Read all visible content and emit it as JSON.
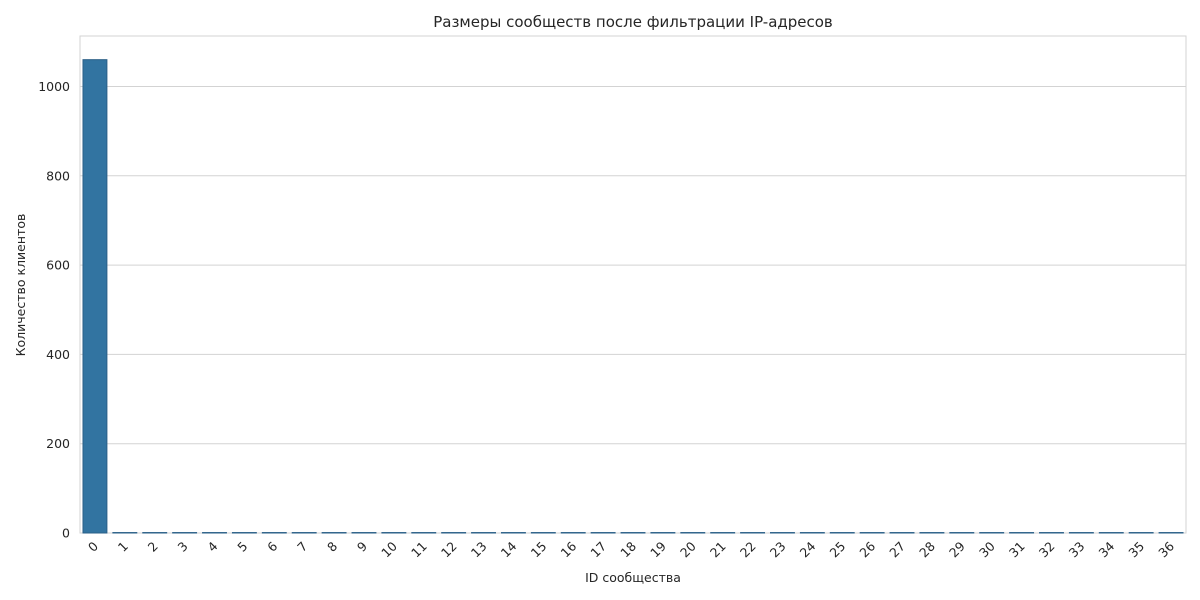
{
  "chart_data": {
    "type": "bar",
    "title": "Размеры сообществ после фильтрации IP-адресов",
    "xlabel": "ID сообщества",
    "ylabel": "Количество клиентов",
    "categories": [
      "0",
      "1",
      "2",
      "3",
      "4",
      "5",
      "6",
      "7",
      "8",
      "9",
      "10",
      "11",
      "12",
      "13",
      "14",
      "15",
      "16",
      "17",
      "18",
      "19",
      "20",
      "21",
      "22",
      "23",
      "24",
      "25",
      "26",
      "27",
      "28",
      "29",
      "30",
      "31",
      "32",
      "33",
      "34",
      "35",
      "36"
    ],
    "values": [
      1060,
      1,
      1,
      1,
      1,
      1,
      1,
      1,
      1,
      1,
      1,
      1,
      1,
      1,
      1,
      1,
      1,
      1,
      1,
      1,
      1,
      1,
      1,
      1,
      1,
      1,
      1,
      1,
      1,
      1,
      1,
      1,
      1,
      1,
      1,
      1,
      1
    ],
    "ylim": [
      0,
      1113
    ],
    "yticks": [
      0,
      200,
      400,
      600,
      800,
      1000
    ],
    "grid": true,
    "bar_color": "#3274a1",
    "grid_color": "#d3d3d3"
  }
}
